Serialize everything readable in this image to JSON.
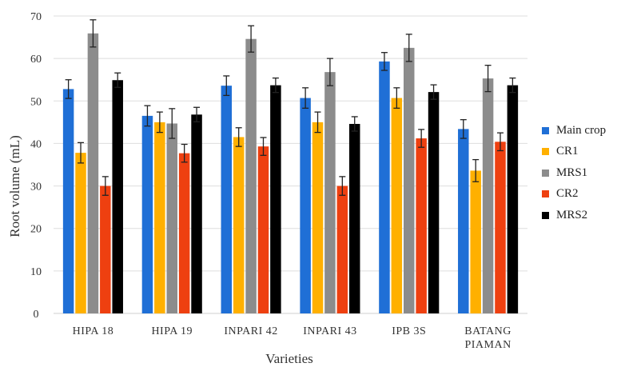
{
  "chart_data": {
    "type": "bar",
    "title": "",
    "xlabel": "Varieties",
    "ylabel": "Root volume (mL)",
    "ylim": [
      0,
      70
    ],
    "yticks": [
      0,
      10,
      20,
      30,
      40,
      50,
      60,
      70
    ],
    "grid": true,
    "legend_position": "right",
    "categories": [
      [
        "HIPA 18"
      ],
      [
        "HIPA 19"
      ],
      [
        "INPARI 42"
      ],
      [
        "INPARI 43"
      ],
      [
        "IPB 3S"
      ],
      [
        "BATANG",
        "PIAMAN"
      ]
    ],
    "series": [
      {
        "name": "Main crop",
        "color": "#1f6fd6",
        "values": [
          52.8,
          46.5,
          53.6,
          50.7,
          59.3,
          43.4
        ],
        "errors": [
          2.2,
          2.4,
          2.3,
          2.4,
          2.1,
          2.2
        ]
      },
      {
        "name": "CR1",
        "color": "#ffb000",
        "values": [
          37.8,
          45.0,
          41.5,
          45.0,
          50.7,
          33.6
        ],
        "errors": [
          2.4,
          2.4,
          2.2,
          2.4,
          2.4,
          2.6
        ]
      },
      {
        "name": "MRS1",
        "color": "#8c8c8c",
        "values": [
          65.9,
          44.7,
          64.6,
          56.8,
          62.5,
          55.3
        ],
        "errors": [
          3.2,
          3.5,
          3.1,
          3.2,
          3.2,
          3.1
        ]
      },
      {
        "name": "CR2",
        "color": "#ee4010",
        "values": [
          30.0,
          37.7,
          39.3,
          30.0,
          41.2,
          40.4
        ],
        "errors": [
          2.2,
          2.1,
          2.1,
          2.2,
          2.1,
          2.1
        ]
      },
      {
        "name": "MRS2",
        "color": "#000000",
        "values": [
          54.9,
          46.8,
          53.7,
          44.6,
          52.1,
          53.7
        ],
        "errors": [
          1.7,
          1.7,
          1.7,
          1.7,
          1.7,
          1.7
        ]
      }
    ]
  }
}
